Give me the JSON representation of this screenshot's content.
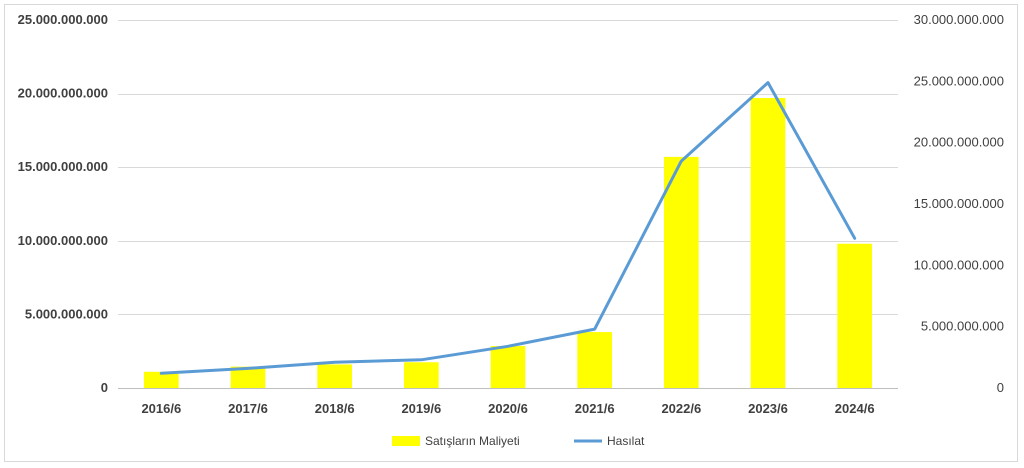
{
  "chart_data": {
    "type": "bar+line",
    "categories": [
      "2016/6",
      "2017/6",
      "2018/6",
      "2019/6",
      "2020/6",
      "2021/6",
      "2022/6",
      "2023/6",
      "2024/6"
    ],
    "series": [
      {
        "name": "Satışların Maliyeti",
        "type": "bar",
        "axis": "left",
        "color": "#ffff00",
        "values": [
          1100000000,
          1450000000,
          1600000000,
          1750000000,
          2850000000,
          3800000000,
          15700000000,
          19700000000,
          9800000000
        ]
      },
      {
        "name": "Hasılat",
        "type": "line",
        "axis": "right",
        "color": "#5b9bd5",
        "values": [
          1200000000,
          1600000000,
          2100000000,
          2300000000,
          3400000000,
          4800000000,
          18500000000,
          24900000000,
          12200000000
        ]
      }
    ],
    "y_left": {
      "ylim": [
        0,
        25000000000
      ],
      "ticks": [
        0,
        5000000000,
        10000000000,
        15000000000,
        20000000000,
        25000000000
      ],
      "tick_labels": [
        "0",
        "5.000.000.000",
        "10.000.000.000",
        "15.000.000.000",
        "20.000.000.000",
        "25.000.000.000"
      ]
    },
    "y_right": {
      "ylim": [
        0,
        30000000000
      ],
      "ticks": [
        0,
        5000000000,
        10000000000,
        15000000000,
        20000000000,
        25000000000,
        30000000000
      ],
      "tick_labels": [
        "0",
        "5.000.000.000",
        "10.000.000.000",
        "15.000.000.000",
        "20.000.000.000",
        "25.000.000.000",
        "30.000.000.000"
      ]
    },
    "grid": true,
    "legend_position": "bottom-center",
    "title": "",
    "xlabel": "",
    "ylabel": ""
  }
}
